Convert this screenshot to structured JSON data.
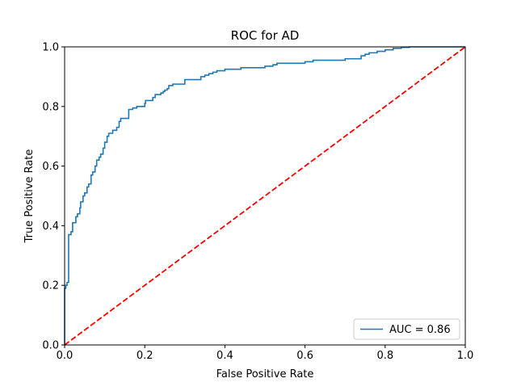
{
  "chart_data": {
    "type": "line",
    "title": "ROC for AD",
    "xlabel": "False Positive Rate",
    "ylabel": "True Positive Rate",
    "xlim": [
      0,
      1
    ],
    "ylim": [
      0,
      1
    ],
    "xticks": [
      "0.0",
      "0.2",
      "0.4",
      "0.6",
      "0.8",
      "1.0"
    ],
    "yticks": [
      "0.0",
      "0.2",
      "0.4",
      "0.6",
      "0.8",
      "1.0"
    ],
    "grid": false,
    "legend_position": "lower-right",
    "series": [
      {
        "name": "AUC = 0.86",
        "color": "#1f77b4",
        "style": "solid",
        "x": [
          0.0,
          0.0,
          0.003,
          0.006,
          0.006,
          0.01,
          0.01,
          0.016,
          0.016,
          0.02,
          0.02,
          0.028,
          0.032,
          0.038,
          0.04,
          0.046,
          0.05,
          0.056,
          0.06,
          0.066,
          0.07,
          0.076,
          0.08,
          0.086,
          0.09,
          0.096,
          0.1,
          0.106,
          0.11,
          0.116,
          0.12,
          0.126,
          0.13,
          0.136,
          0.14,
          0.146,
          0.15,
          0.16,
          0.17,
          0.176,
          0.18,
          0.19,
          0.2,
          0.202,
          0.22,
          0.226,
          0.24,
          0.246,
          0.25,
          0.256,
          0.26,
          0.27,
          0.28,
          0.29,
          0.3,
          0.34,
          0.35,
          0.36,
          0.37,
          0.38,
          0.39,
          0.4,
          0.41,
          0.44,
          0.5,
          0.52,
          0.53,
          0.56,
          0.6,
          0.62,
          0.64,
          0.66,
          0.7,
          0.72,
          0.74,
          0.75,
          0.76,
          0.78,
          0.8,
          0.82,
          0.84,
          0.86,
          0.88,
          0.93
        ],
        "y": [
          0.0,
          0.16,
          0.19,
          0.2,
          0.21,
          0.21,
          0.25,
          0.37,
          0.38,
          0.38,
          0.39,
          0.41,
          0.43,
          0.44,
          0.46,
          0.48,
          0.5,
          0.51,
          0.53,
          0.54,
          0.57,
          0.58,
          0.6,
          0.62,
          0.63,
          0.64,
          0.66,
          0.68,
          0.7,
          0.71,
          0.71,
          0.72,
          0.72,
          0.73,
          0.75,
          0.76,
          0.76,
          0.76,
          0.79,
          0.795,
          0.795,
          0.8,
          0.8,
          0.81,
          0.82,
          0.83,
          0.84,
          0.845,
          0.85,
          0.855,
          0.86,
          0.87,
          0.875,
          0.875,
          0.875,
          0.89,
          0.9,
          0.905,
          0.91,
          0.915,
          0.92,
          0.92,
          0.925,
          0.925,
          0.93,
          0.935,
          0.94,
          0.945,
          0.945,
          0.95,
          0.955,
          0.955,
          0.955,
          0.96,
          0.96,
          0.97,
          0.975,
          0.98,
          0.985,
          0.99,
          0.995,
          0.998,
          1.0,
          1.0
        ]
      },
      {
        "name": "",
        "color": "#ff0000",
        "style": "dashed",
        "x": [
          0,
          1
        ],
        "y": [
          0,
          1
        ]
      }
    ]
  }
}
